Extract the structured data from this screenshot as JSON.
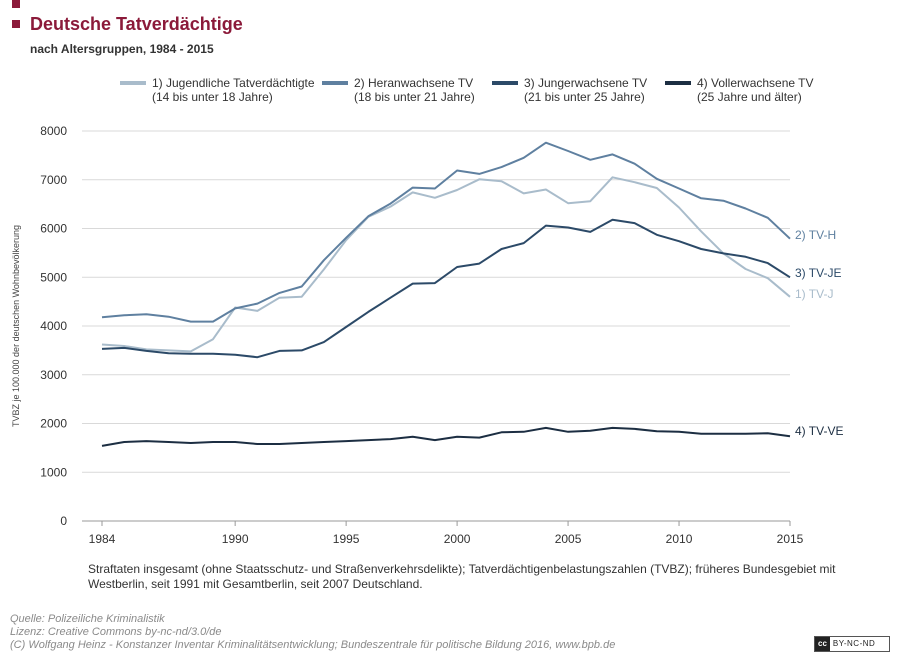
{
  "header": {
    "title": "Deutsche Tatverdächtige",
    "subtitle": "nach Altersgruppen, 1984 - 2015"
  },
  "legend": [
    {
      "label_line1": "1) Jugendliche Tatverdächtigte",
      "label_line2": "(14 bis unter 18 Jahre)",
      "color": "#a9bccb"
    },
    {
      "label_line1": "2) Heranwachsene TV",
      "label_line2": "(18 bis unter 21 Jahre)",
      "color": "#5f80a0"
    },
    {
      "label_line1": "3) Jungerwachsene TV",
      "label_line2": "(21 bis unter 25 Jahre)",
      "color": "#2c4a68"
    },
    {
      "label_line1": "4) Vollerwachsene TV",
      "label_line2": "(25 Jahre und älter)",
      "color": "#1c2e42"
    }
  ],
  "chart_data": {
    "type": "line",
    "title": "Deutsche Tatverdächtige",
    "ylabel": "TVBZ je 100.000 der deutschen Wohnbevölkerung",
    "xlabel": "",
    "xlim": [
      1984,
      2015
    ],
    "ylim": [
      0,
      8000
    ],
    "xticks": [
      1984,
      1990,
      1995,
      2000,
      2005,
      2010,
      2015
    ],
    "yticks": [
      0,
      1000,
      2000,
      3000,
      4000,
      5000,
      6000,
      7000,
      8000
    ],
    "grid": true,
    "x": [
      1984,
      1985,
      1986,
      1987,
      1988,
      1989,
      1990,
      1991,
      1992,
      1993,
      1994,
      1995,
      1996,
      1997,
      1998,
      1999,
      2000,
      2001,
      2002,
      2003,
      2004,
      2005,
      2006,
      2007,
      2008,
      2009,
      2010,
      2011,
      2012,
      2013,
      2014,
      2015
    ],
    "series": [
      {
        "name": "1) TV-J",
        "end_label": "1) TV-J",
        "color": "#a9bccb",
        "values": [
          3620,
          3590,
          3520,
          3500,
          3480,
          3730,
          4380,
          4310,
          4580,
          4600,
          5160,
          5760,
          6240,
          6450,
          6740,
          6630,
          6790,
          7010,
          6970,
          6720,
          6800,
          6520,
          6560,
          7050,
          6950,
          6830,
          6430,
          5940,
          5490,
          5170,
          4980,
          4600
        ]
      },
      {
        "name": "2) TV-H",
        "end_label": "2) TV-H",
        "color": "#5f80a0",
        "values": [
          4180,
          4220,
          4240,
          4190,
          4090,
          4090,
          4360,
          4460,
          4680,
          4810,
          5350,
          5810,
          6250,
          6510,
          6840,
          6820,
          7190,
          7120,
          7260,
          7450,
          7760,
          7590,
          7410,
          7520,
          7330,
          7020,
          6820,
          6620,
          6570,
          6410,
          6220,
          5790
        ]
      },
      {
        "name": "3) TV-JE",
        "end_label": "3) TV-JE",
        "color": "#2c4a68",
        "values": [
          3530,
          3550,
          3490,
          3440,
          3430,
          3430,
          3410,
          3360,
          3490,
          3500,
          3670,
          3980,
          4290,
          4580,
          4870,
          4880,
          5210,
          5280,
          5580,
          5700,
          6060,
          6020,
          5930,
          6180,
          6110,
          5870,
          5740,
          5580,
          5490,
          5420,
          5290,
          5000
        ]
      },
      {
        "name": "4) TV-VE",
        "end_label": "4) TV-VE",
        "color": "#1c2e42",
        "values": [
          1540,
          1620,
          1640,
          1620,
          1600,
          1620,
          1620,
          1580,
          1580,
          1600,
          1620,
          1640,
          1660,
          1680,
          1730,
          1660,
          1730,
          1710,
          1820,
          1830,
          1910,
          1830,
          1850,
          1910,
          1890,
          1840,
          1830,
          1790,
          1790,
          1790,
          1800,
          1740
        ]
      }
    ]
  },
  "footer": {
    "note": "Straftaten insgesamt (ohne Staatsschutz- und Straßenverkehrsdelikte); Tatverdächtigenbelastungszahlen (TVBZ); früheres Bundesgebiet mit Westberlin, seit 1991 mit Gesamtberlin, seit 2007 Deutschland.",
    "source_line1": "Quelle: Polizeiliche Kriminalistik",
    "source_line2": "Lizenz: Creative Commons by-nc-nd/3.0/de",
    "source_line3": "(C) Wolfgang Heinz - Konstanzer Inventar Kriminalitätsentwicklung; Bundeszentrale für politische Bildung 2016, www.bpb.de",
    "badge_cc": "cc",
    "badge_license": "BY-NC-ND"
  }
}
